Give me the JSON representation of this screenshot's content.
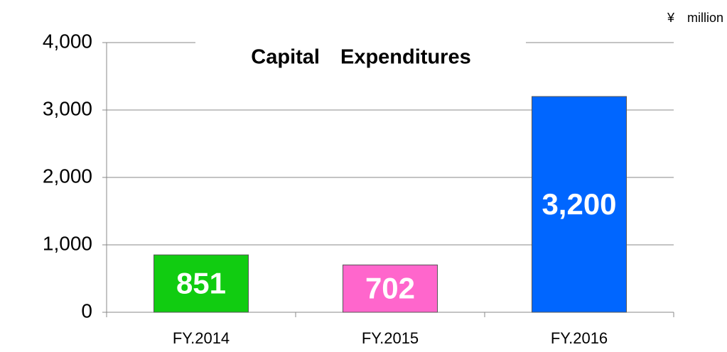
{
  "chart_data": {
    "type": "bar",
    "title": "Capital　Expenditures",
    "unit": "¥　million",
    "categories": [
      "FY.2014",
      "FY.2015",
      "FY.2016"
    ],
    "values": [
      851,
      702,
      3200
    ],
    "value_labels": [
      "851",
      "702",
      "3,200"
    ],
    "colors": [
      "#11cc11",
      "#ff66cc",
      "#0066ff"
    ],
    "ylim": [
      0,
      4000
    ],
    "yticks": [
      0,
      {
        "value": 1000,
        "label": "1,000"
      },
      {
        "value": 2000,
        "label": "2,000"
      },
      {
        "value": 3000,
        "label": "3,000"
      },
      {
        "value": 4000,
        "label": "4,000"
      }
    ],
    "grid": true
  }
}
